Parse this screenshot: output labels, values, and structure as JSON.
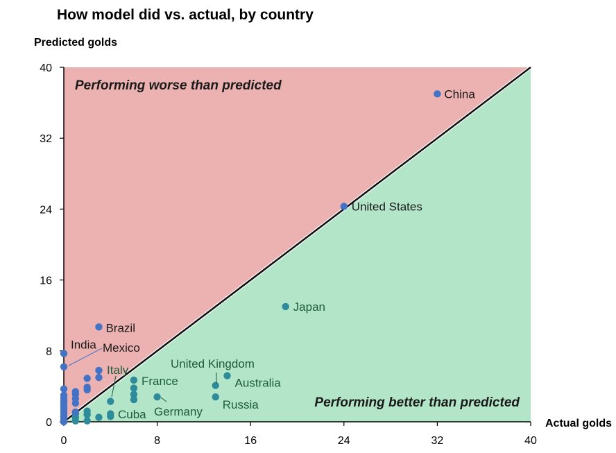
{
  "chart_data": {
    "type": "scatter",
    "title": "How model did vs. actual, by country",
    "xlabel": "Actual golds",
    "ylabel": "Predicted golds",
    "xlim": [
      0,
      40
    ],
    "ylim": [
      0,
      40
    ],
    "xticks": [
      "0",
      "8",
      "16",
      "24",
      "32",
      "40"
    ],
    "yticks": [
      "0",
      "8",
      "16",
      "24",
      "32",
      "40"
    ],
    "grid": false,
    "regions": [
      {
        "text": "Performing worse than predicted",
        "color": "#ecb2b1"
      },
      {
        "text": "Performing better than predicted",
        "color": "#b3e6c8"
      }
    ],
    "diagonal": {
      "from": [
        0,
        0
      ],
      "to": [
        40,
        40
      ]
    },
    "colors": {
      "above": "#4472c4",
      "below": "#2e8b9a",
      "above_label": "#1a1a1a",
      "below_label": "#1e5a3c"
    },
    "labeled_points": [
      {
        "name": "China",
        "x": 32,
        "y": 37
      },
      {
        "name": "United States",
        "x": 24,
        "y": 24.3
      },
      {
        "name": "Japan",
        "x": 19,
        "y": 13
      },
      {
        "name": "Brazil",
        "x": 3,
        "y": 10.7
      },
      {
        "name": "India",
        "x": 0,
        "y": 7.7
      },
      {
        "name": "Mexico",
        "x": 0,
        "y": 6.2
      },
      {
        "name": "Italy",
        "x": 4,
        "y": 2.3
      },
      {
        "name": "France",
        "x": 6,
        "y": 4.7
      },
      {
        "name": "Cuba",
        "x": 4,
        "y": 0.9
      },
      {
        "name": "Germany",
        "x": 8,
        "y": 2.8
      },
      {
        "name": "United Kingdom",
        "x": 13,
        "y": 4.1
      },
      {
        "name": "Australia",
        "x": 14,
        "y": 5.2
      },
      {
        "name": "Russia",
        "x": 13,
        "y": 2.8
      }
    ],
    "other_points": [
      {
        "x": 0,
        "y": 0.0
      },
      {
        "x": 0,
        "y": 0.3
      },
      {
        "x": 0,
        "y": 0.6
      },
      {
        "x": 0,
        "y": 0.9
      },
      {
        "x": 0,
        "y": 1.2
      },
      {
        "x": 0,
        "y": 1.5
      },
      {
        "x": 0,
        "y": 1.8
      },
      {
        "x": 0,
        "y": 2.1
      },
      {
        "x": 0,
        "y": 2.4
      },
      {
        "x": 0,
        "y": 2.7
      },
      {
        "x": 0,
        "y": 3.0
      },
      {
        "x": 0,
        "y": 3.7
      },
      {
        "x": 1,
        "y": 0.1
      },
      {
        "x": 1,
        "y": 0.5
      },
      {
        "x": 1,
        "y": 0.9
      },
      {
        "x": 1,
        "y": 1.1
      },
      {
        "x": 1,
        "y": 2.1
      },
      {
        "x": 1,
        "y": 2.6
      },
      {
        "x": 1,
        "y": 3.1
      },
      {
        "x": 1,
        "y": 3.4
      },
      {
        "x": 2,
        "y": 0.1
      },
      {
        "x": 2,
        "y": 0.8
      },
      {
        "x": 2,
        "y": 1.2
      },
      {
        "x": 2,
        "y": 3.6
      },
      {
        "x": 2,
        "y": 3.9
      },
      {
        "x": 2,
        "y": 4.9
      },
      {
        "x": 3,
        "y": 0.5
      },
      {
        "x": 3,
        "y": 5.0
      },
      {
        "x": 3,
        "y": 5.8
      },
      {
        "x": 4,
        "y": 0.6
      },
      {
        "x": 6,
        "y": 2.5
      },
      {
        "x": 6,
        "y": 3.1
      },
      {
        "x": 6,
        "y": 3.8
      }
    ]
  }
}
